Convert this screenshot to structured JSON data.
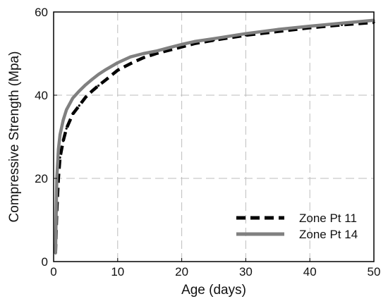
{
  "chart_data": {
    "type": "line",
    "title": "",
    "xlabel": "Age (days)",
    "ylabel": "Compressive Strength (Mpa)",
    "xlim": [
      0,
      50
    ],
    "ylim": [
      0,
      60
    ],
    "xticks": [
      0,
      10,
      20,
      30,
      40,
      50
    ],
    "yticks": [
      0,
      20,
      40,
      60
    ],
    "xtick_labels": [
      "0",
      "10",
      "20",
      "30",
      "40",
      "50"
    ],
    "ytick_labels": [
      "0",
      "20",
      "40",
      "60"
    ],
    "grid": true,
    "grid_style": "dashed",
    "legend_position": "lower-right",
    "series": [
      {
        "name": "Zone Pt 11",
        "color": "#000000",
        "line_style": "dashed",
        "x": [
          0.3,
          0.5,
          0.75,
          1,
          1.5,
          2,
          3,
          4,
          5,
          6,
          7,
          8,
          10,
          12,
          14,
          16,
          18,
          20,
          22,
          25,
          30,
          35,
          40,
          45,
          50
        ],
        "y": [
          2,
          12,
          20,
          25,
          29,
          32,
          35.5,
          37.5,
          39.5,
          41,
          42.3,
          43.5,
          46,
          47.6,
          49,
          50,
          50.8,
          51.6,
          52.4,
          53.2,
          54.4,
          55.3,
          56.2,
          56.9,
          57.5
        ]
      },
      {
        "name": "Zone Pt 14",
        "color": "#808080",
        "line_style": "solid",
        "x": [
          0.3,
          0.5,
          0.75,
          1,
          1.5,
          2,
          3,
          4,
          5,
          6,
          7,
          8,
          10,
          12,
          14,
          16,
          18,
          20,
          22,
          25,
          30,
          35,
          40,
          45,
          50
        ],
        "y": [
          2,
          20,
          27,
          30.5,
          34,
          36.5,
          39.3,
          41,
          42.5,
          43.8,
          45,
          46,
          47.8,
          49.2,
          50,
          50.6,
          51.4,
          52.2,
          52.9,
          53.6,
          54.8,
          55.8,
          56.6,
          57.3,
          58
        ]
      }
    ]
  }
}
